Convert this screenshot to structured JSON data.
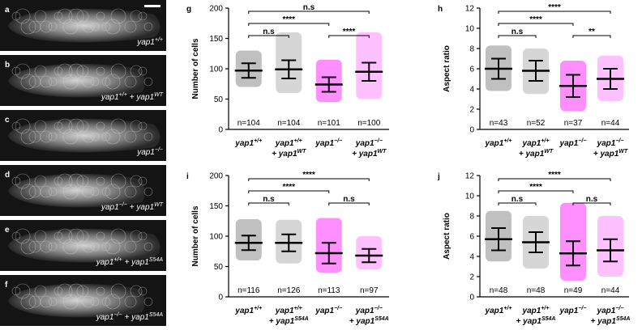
{
  "image_panels": [
    {
      "letter": "a",
      "label": [
        [
          "yap1",
          "+/+"
        ]
      ]
    },
    {
      "letter": "b",
      "label": [
        [
          "yap1",
          "+/+"
        ],
        [
          "+ yap1",
          "WT"
        ]
      ]
    },
    {
      "letter": "c",
      "label": [
        [
          "yap1",
          "−/−"
        ]
      ]
    },
    {
      "letter": "d",
      "label": [
        [
          "yap1",
          "−/−"
        ],
        [
          "+ yap1",
          "WT"
        ]
      ]
    },
    {
      "letter": "e",
      "label": [
        [
          "yap1",
          "+/+"
        ],
        [
          "+ yap1",
          "S54A"
        ]
      ]
    },
    {
      "letter": "f",
      "label": [
        [
          "yap1",
          "−/−"
        ],
        [
          "+ yap1",
          "S54A"
        ]
      ]
    }
  ],
  "chart_data": [
    {
      "type": "dot",
      "panel": "g",
      "y_label": "Number of cells",
      "ylim": [
        0,
        200
      ],
      "yticks": [
        0,
        50,
        100,
        150,
        200
      ],
      "categories": [
        [
          [
            [
              "yap1",
              "+/+"
            ]
          ]
        ],
        [
          [
            [
              "yap1",
              "+/+"
            ]
          ],
          [
            [
              "+ yap1",
              "WT"
            ]
          ]
        ],
        [
          [
            [
              "yap1",
              "−/−"
            ]
          ]
        ],
        [
          [
            [
              "yap1",
              "−/−"
            ]
          ],
          [
            [
              "+ yap1",
              "WT"
            ]
          ]
        ]
      ],
      "groups": [
        {
          "color": "#8c8c8c",
          "mean": 97,
          "sd": 12,
          "range": [
            70,
            130
          ],
          "n_label": "n=104"
        },
        {
          "color": "#b4b4b4",
          "mean": 99,
          "sd": 15,
          "range": [
            60,
            160
          ],
          "n_label": "n=104"
        },
        {
          "color": "#ff33ff",
          "mean": 74,
          "sd": 12,
          "range": [
            45,
            115
          ],
          "n_label": "n=101"
        },
        {
          "color": "#ff8cff",
          "mean": 95,
          "sd": 15,
          "range": [
            50,
            160
          ],
          "n_label": "n=100"
        }
      ],
      "comparisons": [
        {
          "from": 0,
          "to": 1,
          "label": "n.s"
        },
        {
          "from": 2,
          "to": 3,
          "label": "****"
        },
        {
          "from": 0,
          "to": 2,
          "label": "****"
        },
        {
          "from": 0,
          "to": 3,
          "label": "n.s"
        }
      ]
    },
    {
      "type": "dot",
      "panel": "h",
      "y_label": "Aspect ratio",
      "ylim": [
        0,
        12
      ],
      "yticks": [
        0,
        2,
        4,
        6,
        8,
        10,
        12
      ],
      "categories": [
        [
          [
            [
              "yap1",
              "+/+"
            ]
          ]
        ],
        [
          [
            [
              "yap1",
              "+/+"
            ]
          ],
          [
            [
              "+ yap1",
              "WT"
            ]
          ]
        ],
        [
          [
            [
              "yap1",
              "−/−"
            ]
          ]
        ],
        [
          [
            [
              "yap1",
              "−/−"
            ]
          ],
          [
            [
              "+ yap1",
              "WT"
            ]
          ]
        ]
      ],
      "groups": [
        {
          "color": "#8c8c8c",
          "mean": 6.0,
          "sd": 1.0,
          "range": [
            3.8,
            8.3
          ],
          "n_label": "n=43"
        },
        {
          "color": "#b4b4b4",
          "mean": 5.8,
          "sd": 1.0,
          "range": [
            3.5,
            8.0
          ],
          "n_label": "n=52"
        },
        {
          "color": "#ff33ff",
          "mean": 4.3,
          "sd": 1.1,
          "range": [
            1.8,
            6.8
          ],
          "n_label": "n=37"
        },
        {
          "color": "#ff8cff",
          "mean": 5.0,
          "sd": 1.0,
          "range": [
            2.8,
            7.3
          ],
          "n_label": "n=44"
        }
      ],
      "comparisons": [
        {
          "from": 0,
          "to": 1,
          "label": "n.s"
        },
        {
          "from": 2,
          "to": 3,
          "label": "**"
        },
        {
          "from": 0,
          "to": 2,
          "label": "****"
        },
        {
          "from": 0,
          "to": 3,
          "label": "****"
        }
      ]
    },
    {
      "type": "dot",
      "panel": "i",
      "y_label": "Number of cells",
      "ylim": [
        0,
        200
      ],
      "yticks": [
        0,
        50,
        100,
        150,
        200
      ],
      "categories": [
        [
          [
            [
              "yap1",
              "+/+"
            ]
          ]
        ],
        [
          [
            [
              "yap1",
              "+/+"
            ]
          ],
          [
            [
              "+ yap1",
              "S54A"
            ]
          ]
        ],
        [
          [
            [
              "yap1",
              "−/−"
            ]
          ]
        ],
        [
          [
            [
              "yap1",
              "−/−"
            ]
          ],
          [
            [
              "+ yap1",
              "S54A"
            ]
          ]
        ]
      ],
      "groups": [
        {
          "color": "#8c8c8c",
          "mean": 89,
          "sd": 12,
          "range": [
            60,
            128
          ],
          "n_label": "n=116"
        },
        {
          "color": "#b4b4b4",
          "mean": 89,
          "sd": 14,
          "range": [
            55,
            127
          ],
          "n_label": "n=126"
        },
        {
          "color": "#ff33ff",
          "mean": 72,
          "sd": 17,
          "range": [
            40,
            130
          ],
          "n_label": "n=113"
        },
        {
          "color": "#ff8cff",
          "mean": 68,
          "sd": 11,
          "range": [
            45,
            100
          ],
          "n_label": "n=97"
        }
      ],
      "comparisons": [
        {
          "from": 0,
          "to": 1,
          "label": "n.s"
        },
        {
          "from": 2,
          "to": 3,
          "label": "n.s"
        },
        {
          "from": 0,
          "to": 2,
          "label": "****"
        },
        {
          "from": 0,
          "to": 3,
          "label": "****"
        }
      ]
    },
    {
      "type": "dot",
      "panel": "j",
      "y_label": "Aspect ratio",
      "ylim": [
        0,
        12
      ],
      "yticks": [
        0,
        2,
        4,
        6,
        8,
        10,
        12
      ],
      "categories": [
        [
          [
            [
              "yap1",
              "+/+"
            ]
          ]
        ],
        [
          [
            [
              "yap1",
              "+/+"
            ]
          ],
          [
            [
              "+ yap1",
              "S54A"
            ]
          ]
        ],
        [
          [
            [
              "yap1",
              "−/−"
            ]
          ]
        ],
        [
          [
            [
              "yap1",
              "−/−"
            ]
          ],
          [
            [
              "+ yap1",
              "S54A"
            ]
          ]
        ]
      ],
      "groups": [
        {
          "color": "#8c8c8c",
          "mean": 5.7,
          "sd": 1.1,
          "range": [
            3.5,
            8.5
          ],
          "n_label": "n=48"
        },
        {
          "color": "#b4b4b4",
          "mean": 5.4,
          "sd": 1.0,
          "range": [
            2.8,
            8.0
          ],
          "n_label": "n=48"
        },
        {
          "color": "#ff33ff",
          "mean": 4.3,
          "sd": 1.2,
          "range": [
            1.6,
            9.3
          ],
          "n_label": "n=49"
        },
        {
          "color": "#ff8cff",
          "mean": 4.6,
          "sd": 1.1,
          "range": [
            2.0,
            8.0
          ],
          "n_label": "n=44"
        }
      ],
      "comparisons": [
        {
          "from": 0,
          "to": 1,
          "label": "n.s"
        },
        {
          "from": 2,
          "to": 3,
          "label": "n.s"
        },
        {
          "from": 0,
          "to": 2,
          "label": "****"
        },
        {
          "from": 0,
          "to": 3,
          "label": "****"
        }
      ]
    }
  ]
}
